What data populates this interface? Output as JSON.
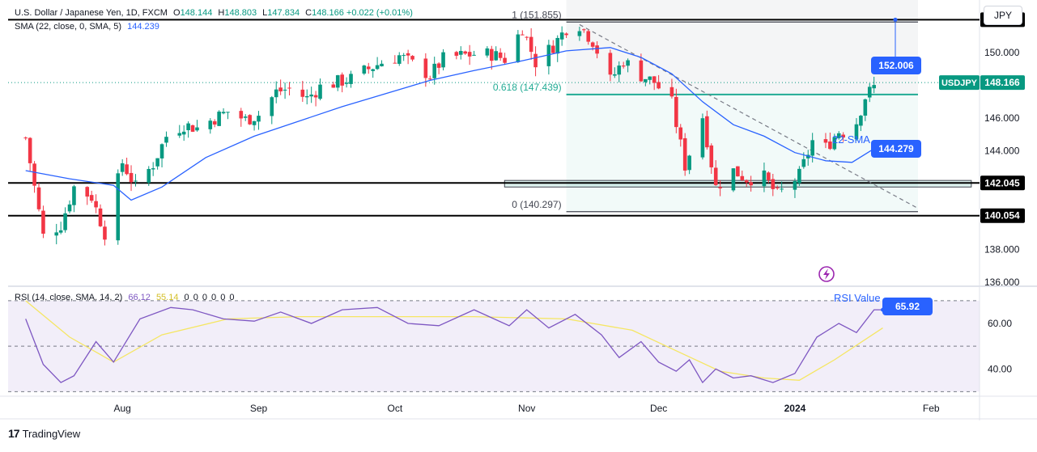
{
  "legend": {
    "title": "U.S. Dollar / Japanese Yen, 1D, FXCM",
    "open_key": "O",
    "open": "148.144",
    "high_key": "H",
    "high": "148.803",
    "low_key": "L",
    "low": "147.834",
    "close_key": "C",
    "close": "148.166",
    "change": "+0.022 (+0.01%)",
    "sma_label": "SMA (22, close, 0, SMA, 5)",
    "sma_value": "144.239",
    "rsi_label": "RSI (14, close, SMA, 14, 2)",
    "rsi_value": "66.12",
    "rsi_ma_value": "55.14",
    "rsi_zeros": "0  0  0  0  0  0"
  },
  "currency_button": "JPY",
  "branding": {
    "logo_mark": "17",
    "logo_text": "TradingView"
  },
  "colors": {
    "up": "#089981",
    "down": "#f23645",
    "sma": "#2962ff",
    "rsi": "#7e57c2",
    "rsi_ma": "#f5e663",
    "label_blue": "#2962ff",
    "fib_green": "#22ab94"
  },
  "chart_data": {
    "type": "candlestick",
    "symbol": "USDJPY",
    "price_axis": {
      "ticks": [
        "136.000",
        "138.000",
        "140.000",
        "142.000",
        "144.000",
        "146.000",
        "148.000",
        "150.000"
      ],
      "range": [
        135.8,
        153.2
      ],
      "top_partial_tick": "152.000"
    },
    "time_axis": {
      "labels": [
        "Aug",
        "Sep",
        "Oct",
        "Nov",
        "Dec",
        "2024",
        "Feb"
      ],
      "bold_labels": [
        "2024"
      ]
    },
    "price_path": [
      [
        "2023-07-10",
        144.8
      ],
      [
        "2023-07-14",
        138.8
      ],
      [
        "2023-07-18",
        139.5
      ],
      [
        "2023-07-21",
        141.8
      ],
      [
        "2023-07-25",
        141.2
      ],
      [
        "2023-07-28",
        139.0
      ],
      [
        "2023-08-01",
        143.3
      ],
      [
        "2023-08-04",
        141.8
      ],
      [
        "2023-08-08",
        143.2
      ],
      [
        "2023-08-11",
        144.9
      ],
      [
        "2023-08-15",
        145.6
      ],
      [
        "2023-08-18",
        145.4
      ],
      [
        "2023-08-22",
        146.0
      ],
      [
        "2023-08-25",
        146.4
      ],
      [
        "2023-08-29",
        145.9
      ],
      [
        "2023-09-01",
        146.2
      ],
      [
        "2023-09-05",
        147.6
      ],
      [
        "2023-09-08",
        147.8
      ],
      [
        "2023-09-12",
        147.2
      ],
      [
        "2023-09-15",
        147.9
      ],
      [
        "2023-09-19",
        148.2
      ],
      [
        "2023-09-22",
        148.4
      ],
      [
        "2023-09-26",
        149.0
      ],
      [
        "2023-09-29",
        149.4
      ],
      [
        "2023-10-03",
        149.8
      ],
      [
        "2023-10-06",
        149.3
      ],
      [
        "2023-10-10",
        148.6
      ],
      [
        "2023-10-13",
        149.6
      ],
      [
        "2023-10-17",
        149.8
      ],
      [
        "2023-10-20",
        149.9
      ],
      [
        "2023-10-24",
        149.9
      ],
      [
        "2023-10-27",
        149.6
      ],
      [
        "2023-10-31",
        151.5
      ],
      [
        "2023-11-03",
        149.4
      ],
      [
        "2023-11-07",
        150.4
      ],
      [
        "2023-11-10",
        151.5
      ],
      [
        "2023-11-13",
        151.7
      ],
      [
        "2023-11-16",
        150.7
      ],
      [
        "2023-11-20",
        148.3
      ],
      [
        "2023-11-23",
        149.5
      ],
      [
        "2023-11-27",
        148.6
      ],
      [
        "2023-11-30",
        148.2
      ],
      [
        "2023-12-04",
        146.9
      ],
      [
        "2023-12-07",
        143.1
      ],
      [
        "2023-12-11",
        146.1
      ],
      [
        "2023-12-14",
        141.8
      ],
      [
        "2023-12-18",
        142.8
      ],
      [
        "2023-12-21",
        142.3
      ],
      [
        "2023-12-25",
        142.4
      ],
      [
        "2023-12-28",
        141.3
      ],
      [
        "2024-01-02",
        142.5
      ],
      [
        "2024-01-05",
        144.6
      ],
      [
        "2024-01-08",
        144.2
      ],
      [
        "2024-01-11",
        145.2
      ],
      [
        "2024-01-14",
        145.0
      ],
      [
        "2024-01-17",
        147.3
      ],
      [
        "2024-01-20",
        148.2
      ]
    ],
    "sma_22": [
      [
        "2023-07-10",
        142.8
      ],
      [
        "2023-07-20",
        142.3
      ],
      [
        "2023-07-30",
        141.9
      ],
      [
        "2023-08-03",
        141.0
      ],
      [
        "2023-08-10",
        141.8
      ],
      [
        "2023-08-20",
        143.6
      ],
      [
        "2023-08-31",
        144.9
      ],
      [
        "2023-09-10",
        145.8
      ],
      [
        "2023-09-20",
        146.7
      ],
      [
        "2023-09-30",
        147.5
      ],
      [
        "2023-10-10",
        148.3
      ],
      [
        "2023-10-20",
        148.9
      ],
      [
        "2023-10-31",
        149.5
      ],
      [
        "2023-11-10",
        150.1
      ],
      [
        "2023-11-20",
        150.3
      ],
      [
        "2023-11-27",
        149.7
      ],
      [
        "2023-12-04",
        148.7
      ],
      [
        "2023-12-11",
        147.0
      ],
      [
        "2023-12-18",
        145.6
      ],
      [
        "2023-12-25",
        144.9
      ],
      [
        "2024-01-01",
        143.9
      ],
      [
        "2024-01-08",
        143.4
      ],
      [
        "2024-01-14",
        143.3
      ],
      [
        "2024-01-20",
        144.3
      ]
    ],
    "rsi": [
      [
        "2023-07-10",
        62
      ],
      [
        "2023-07-14",
        42
      ],
      [
        "2023-07-18",
        34
      ],
      [
        "2023-07-21",
        37
      ],
      [
        "2023-07-26",
        52
      ],
      [
        "2023-07-30",
        43
      ],
      [
        "2023-08-05",
        62
      ],
      [
        "2023-08-12",
        67
      ],
      [
        "2023-08-17",
        66
      ],
      [
        "2023-08-24",
        62
      ],
      [
        "2023-08-31",
        61
      ],
      [
        "2023-09-06",
        65
      ],
      [
        "2023-09-13",
        60
      ],
      [
        "2023-09-20",
        66
      ],
      [
        "2023-09-28",
        67
      ],
      [
        "2023-10-05",
        60
      ],
      [
        "2023-10-12",
        59
      ],
      [
        "2023-10-20",
        66
      ],
      [
        "2023-10-28",
        59
      ],
      [
        "2023-11-01",
        66
      ],
      [
        "2023-11-06",
        58
      ],
      [
        "2023-11-12",
        64
      ],
      [
        "2023-11-18",
        55
      ],
      [
        "2023-11-22",
        45
      ],
      [
        "2023-11-27",
        52
      ],
      [
        "2023-12-01",
        43
      ],
      [
        "2023-12-05",
        39
      ],
      [
        "2023-12-08",
        44
      ],
      [
        "2023-12-11",
        34
      ],
      [
        "2023-12-14",
        40
      ],
      [
        "2023-12-18",
        36
      ],
      [
        "2023-12-22",
        37
      ],
      [
        "2023-12-27",
        34
      ],
      [
        "2024-01-01",
        38
      ],
      [
        "2024-01-06",
        54
      ],
      [
        "2024-01-11",
        60
      ],
      [
        "2024-01-15",
        56
      ],
      [
        "2024-01-19",
        66
      ],
      [
        "2024-01-21",
        66
      ]
    ],
    "rsi_ma": [
      [
        "2023-07-10",
        70
      ],
      [
        "2023-07-20",
        54
      ],
      [
        "2023-07-30",
        43
      ],
      [
        "2023-08-10",
        55
      ],
      [
        "2023-08-25",
        62
      ],
      [
        "2023-09-10",
        63
      ],
      [
        "2023-09-30",
        63
      ],
      [
        "2023-10-20",
        63
      ],
      [
        "2023-11-10",
        62
      ],
      [
        "2023-11-25",
        57
      ],
      [
        "2023-12-05",
        48
      ],
      [
        "2023-12-15",
        39
      ],
      [
        "2023-12-25",
        36
      ],
      [
        "2024-01-02",
        35
      ],
      [
        "2024-01-10",
        44
      ],
      [
        "2024-01-21",
        58
      ]
    ],
    "rsi_axis": {
      "ticks": [
        "40.00",
        "60.00"
      ],
      "range": [
        28,
        76
      ]
    },
    "horizontal_lines": [
      {
        "price": 152.0,
        "label": "152.000"
      },
      {
        "price": 142.045,
        "label": "142.045"
      },
      {
        "price": 140.054,
        "label": "140.054"
      }
    ],
    "fibonacci": {
      "levels": [
        {
          "text": "1 (151.855)",
          "price": 151.855
        },
        {
          "text": "0.618 (147.439)",
          "price": 147.439
        },
        {
          "text": "0 (140.297)",
          "price": 140.297
        }
      ]
    },
    "support_zone": {
      "low": 141.8,
      "high": 142.2
    },
    "trendline": {
      "from": [
        "2023-11-13",
        151.7
      ],
      "to": [
        "2024-01-29",
        140.5
      ]
    },
    "annotations": {
      "target_label": "152.006",
      "sma_caption": "22-SMA",
      "sma_value_label": "144.279",
      "rsi_caption": "RSI Value",
      "rsi_value_label": "65.92",
      "symbol_tag": "USDJPY",
      "price_tag": "148.166"
    }
  }
}
